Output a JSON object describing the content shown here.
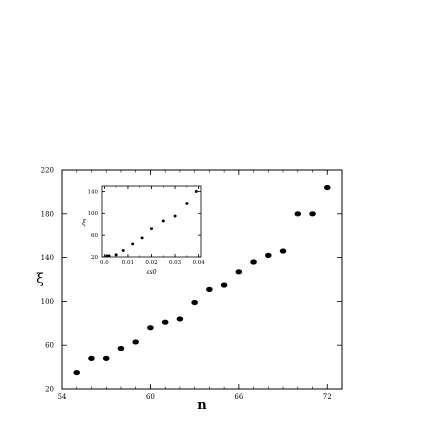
{
  "chart_data": [
    {
      "type": "scatter",
      "title": "",
      "xlabel": "n",
      "ylabel": "ξ",
      "xlim": [
        54,
        73
      ],
      "ylim": [
        20,
        220
      ],
      "xticks": [
        "54",
        "60",
        "66",
        "72"
      ],
      "xtick_values": [
        54,
        60,
        66,
        72
      ],
      "yticks": [
        "20",
        "60",
        "100",
        "140",
        "180",
        "220"
      ],
      "ytick_values": [
        20,
        60,
        100,
        140,
        180,
        220
      ],
      "grid": false,
      "x": [
        55,
        56,
        57,
        58,
        59,
        60,
        61,
        62,
        63,
        64,
        65,
        66,
        67,
        68,
        69,
        70,
        71,
        72
      ],
      "y": [
        35,
        48,
        48,
        57,
        63,
        76,
        81,
        84,
        99,
        111,
        115,
        127,
        136,
        142,
        146,
        180,
        180,
        204
      ]
    },
    {
      "type": "scatter",
      "title": "",
      "xlabel": "εs0",
      "ylabel": "ξ",
      "xlim": [
        -0.001,
        0.041
      ],
      "ylim": [
        20,
        150
      ],
      "xticks": [
        "0.0",
        "0.01",
        "0.02",
        "0.03",
        "0.04"
      ],
      "xtick_values": [
        0.0,
        0.01,
        0.02,
        0.03,
        0.04
      ],
      "yticks": [
        "20",
        "60",
        "100",
        "140"
      ],
      "ytick_values": [
        20,
        60,
        100,
        140
      ],
      "grid": false,
      "x": [
        0.001,
        0.002,
        0.005,
        0.008,
        0.012,
        0.016,
        0.02,
        0.025,
        0.03,
        0.035,
        0.039
      ],
      "y": [
        22,
        22,
        24,
        32,
        44,
        55,
        72,
        86,
        95,
        118,
        140
      ]
    }
  ]
}
